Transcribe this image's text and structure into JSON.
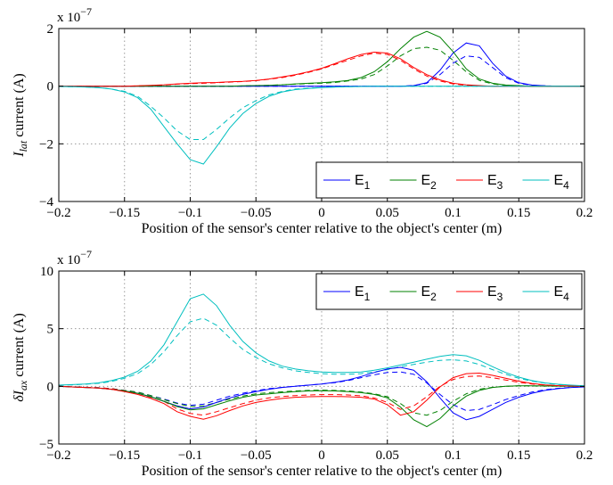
{
  "chart_data": [
    {
      "type": "line",
      "xlabel": "Position of the sensor's center relative to the object's center (m)",
      "ylabel_main": "I",
      "ylabel_sub": "lat",
      "ylabel_rest": " current (A)",
      "y_exponent": "x 10",
      "y_exponent_power": "−7",
      "xlim": [
        -0.2,
        0.2
      ],
      "ylim": [
        -4,
        2
      ],
      "xticks": [
        -0.2,
        -0.15,
        -0.1,
        -0.05,
        0,
        0.05,
        0.1,
        0.15,
        0.2
      ],
      "xtick_labels": [
        "−0.2",
        "−0.15",
        "−0.1",
        "−0.05",
        "0",
        "0.05",
        "0.1",
        "0.15",
        "0.2"
      ],
      "yticks": [
        -4,
        -2,
        0,
        2
      ],
      "ytick_labels": [
        "−4",
        "−2",
        "0",
        "2"
      ],
      "grid": true,
      "legend_position": "bottom-right",
      "legend_layout": "horizontal",
      "x": [
        -0.2,
        -0.19,
        -0.18,
        -0.17,
        -0.16,
        -0.15,
        -0.14,
        -0.13,
        -0.12,
        -0.11,
        -0.1,
        -0.09,
        -0.08,
        -0.07,
        -0.06,
        -0.05,
        -0.04,
        -0.03,
        -0.02,
        -0.01,
        0,
        0.01,
        0.02,
        0.03,
        0.04,
        0.05,
        0.06,
        0.07,
        0.08,
        0.09,
        0.1,
        0.11,
        0.12,
        0.13,
        0.14,
        0.15,
        0.16,
        0.17,
        0.18,
        0.19,
        0.2
      ],
      "series": [
        {
          "label": "E",
          "sub": "1",
          "color": "#0000ff",
          "values": [
            0,
            0,
            0,
            0,
            0,
            0,
            0,
            0,
            0,
            0,
            0,
            0,
            0,
            0,
            0,
            0,
            0,
            0,
            0,
            0,
            0,
            0,
            0,
            0,
            0,
            0,
            0,
            0.02,
            0.12,
            0.55,
            1.15,
            1.5,
            1.4,
            0.8,
            0.35,
            0.12,
            0.04,
            0.01,
            0,
            0,
            0
          ],
          "dashed": [
            0,
            0,
            0,
            0,
            0,
            0,
            0,
            0,
            0,
            0,
            0,
            0,
            0,
            0,
            0,
            0,
            0,
            0,
            0,
            0,
            0,
            0,
            0,
            0,
            0,
            0,
            0,
            0.02,
            0.1,
            0.4,
            0.8,
            1.05,
            1.0,
            0.65,
            0.3,
            0.1,
            0.03,
            0.01,
            0,
            0,
            0
          ]
        },
        {
          "label": "E",
          "sub": "2",
          "color": "#008000",
          "values": [
            0,
            0,
            0,
            0,
            0,
            0,
            0,
            0,
            0,
            0,
            0,
            0,
            0,
            0,
            0.01,
            0.02,
            0.03,
            0.05,
            0.08,
            0.1,
            0.12,
            0.15,
            0.2,
            0.3,
            0.5,
            0.85,
            1.3,
            1.7,
            1.9,
            1.7,
            1.2,
            0.6,
            0.25,
            0.1,
            0.04,
            0.02,
            0,
            0,
            0,
            0,
            0
          ],
          "dashed": [
            0,
            0,
            0,
            0,
            0,
            0,
            0,
            0,
            0,
            0,
            0,
            0,
            0,
            0,
            0.01,
            0.02,
            0.03,
            0.05,
            0.07,
            0.09,
            0.1,
            0.13,
            0.18,
            0.25,
            0.4,
            0.7,
            1.05,
            1.3,
            1.35,
            1.25,
            0.9,
            0.5,
            0.2,
            0.08,
            0.03,
            0.01,
            0,
            0,
            0,
            0,
            0
          ],
          "dashed_visible": true
        },
        {
          "label": "E",
          "sub": "3",
          "color": "#ff0000",
          "values": [
            0,
            0,
            0,
            0,
            0,
            0,
            0.01,
            0.03,
            0.05,
            0.08,
            0.1,
            0.12,
            0.13,
            0.15,
            0.17,
            0.2,
            0.25,
            0.32,
            0.4,
            0.5,
            0.62,
            0.78,
            0.95,
            1.1,
            1.18,
            1.15,
            0.95,
            0.65,
            0.4,
            0.22,
            0.1,
            0.05,
            0.02,
            0,
            0,
            0,
            0,
            0,
            0,
            0,
            0
          ],
          "dashed": [
            0,
            0,
            0,
            0,
            0,
            0,
            0.01,
            0.02,
            0.04,
            0.07,
            0.09,
            0.1,
            0.12,
            0.14,
            0.16,
            0.19,
            0.24,
            0.3,
            0.38,
            0.48,
            0.6,
            0.75,
            0.9,
            1.05,
            1.15,
            1.1,
            0.9,
            0.6,
            0.35,
            0.18,
            0.08,
            0.03,
            0.01,
            0,
            0,
            0,
            0,
            0,
            0,
            0,
            0
          ]
        },
        {
          "label": "E",
          "sub": "4",
          "color": "#00bfbf",
          "values": [
            -0.01,
            -0.02,
            -0.03,
            -0.05,
            -0.1,
            -0.2,
            -0.4,
            -0.8,
            -1.4,
            -2.0,
            -2.55,
            -2.7,
            -2.1,
            -1.45,
            -0.95,
            -0.6,
            -0.35,
            -0.2,
            -0.12,
            -0.08,
            -0.05,
            -0.03,
            -0.02,
            -0.01,
            0,
            0,
            0,
            0,
            0,
            0,
            0,
            0,
            0,
            0,
            0,
            0,
            0,
            0,
            0,
            0,
            0
          ],
          "dashed": [
            -0.01,
            -0.02,
            -0.03,
            -0.05,
            -0.1,
            -0.18,
            -0.35,
            -0.7,
            -1.1,
            -1.55,
            -1.85,
            -1.85,
            -1.5,
            -1.1,
            -0.75,
            -0.5,
            -0.3,
            -0.18,
            -0.1,
            -0.07,
            -0.04,
            -0.03,
            -0.02,
            -0.01,
            0,
            0,
            0,
            0,
            0,
            0,
            0,
            0,
            0,
            0,
            0,
            0,
            0,
            0,
            0,
            0,
            0
          ]
        }
      ]
    },
    {
      "type": "line",
      "xlabel": "Position of the sensor's center relative to the object's center (m)",
      "ylabel_main": "δI",
      "ylabel_sub": "ax",
      "ylabel_rest": " current (A)",
      "y_exponent": "x 10",
      "y_exponent_power": "−7",
      "xlim": [
        -0.2,
        0.2
      ],
      "ylim": [
        -5,
        10
      ],
      "xticks": [
        -0.2,
        -0.15,
        -0.1,
        -0.05,
        0,
        0.05,
        0.1,
        0.15,
        0.2
      ],
      "xtick_labels": [
        "−0.2",
        "−0.15",
        "−0.1",
        "−0.05",
        "0",
        "0.05",
        "0.1",
        "0.15",
        "0.2"
      ],
      "yticks": [
        -5,
        0,
        5,
        10
      ],
      "ytick_labels": [
        "−5",
        "0",
        "5",
        "10"
      ],
      "grid": true,
      "legend_position": "top-right",
      "legend_layout": "horizontal",
      "x": [
        -0.2,
        -0.19,
        -0.18,
        -0.17,
        -0.16,
        -0.15,
        -0.14,
        -0.13,
        -0.12,
        -0.11,
        -0.1,
        -0.09,
        -0.08,
        -0.07,
        -0.06,
        -0.05,
        -0.04,
        -0.03,
        -0.02,
        -0.01,
        0,
        0.01,
        0.02,
        0.03,
        0.04,
        0.05,
        0.06,
        0.07,
        0.08,
        0.09,
        0.1,
        0.11,
        0.12,
        0.13,
        0.14,
        0.15,
        0.16,
        0.17,
        0.18,
        0.19,
        0.2
      ],
      "series": [
        {
          "label": "E",
          "sub": "1",
          "color": "#0000ff",
          "values": [
            0,
            -0.05,
            -0.1,
            -0.15,
            -0.25,
            -0.4,
            -0.6,
            -0.9,
            -1.3,
            -1.7,
            -1.95,
            -1.8,
            -1.4,
            -1.0,
            -0.7,
            -0.45,
            -0.25,
            -0.1,
            0.0,
            0.1,
            0.2,
            0.35,
            0.55,
            0.85,
            1.2,
            1.5,
            1.65,
            1.4,
            0.4,
            -1.0,
            -2.3,
            -2.9,
            -2.6,
            -2.0,
            -1.4,
            -0.95,
            -0.6,
            -0.35,
            -0.2,
            -0.1,
            -0.05
          ],
          "dashed": [
            0,
            -0.05,
            -0.08,
            -0.12,
            -0.2,
            -0.35,
            -0.5,
            -0.8,
            -1.1,
            -1.45,
            -1.65,
            -1.55,
            -1.2,
            -0.85,
            -0.6,
            -0.38,
            -0.2,
            -0.08,
            0.02,
            0.1,
            0.2,
            0.32,
            0.5,
            0.75,
            1.0,
            1.2,
            1.25,
            1.05,
            0.3,
            -0.7,
            -1.6,
            -2.1,
            -2.0,
            -1.6,
            -1.15,
            -0.8,
            -0.5,
            -0.3,
            -0.17,
            -0.09,
            -0.04
          ]
        },
        {
          "label": "E",
          "sub": "2",
          "color": "#008000",
          "values": [
            0,
            -0.05,
            -0.1,
            -0.15,
            -0.25,
            -0.4,
            -0.6,
            -0.9,
            -1.3,
            -1.75,
            -2.05,
            -1.95,
            -1.6,
            -1.25,
            -0.95,
            -0.75,
            -0.65,
            -0.55,
            -0.45,
            -0.4,
            -0.38,
            -0.4,
            -0.45,
            -0.55,
            -0.7,
            -1.0,
            -1.8,
            -2.9,
            -3.5,
            -2.8,
            -1.7,
            -0.85,
            -0.35,
            -0.1,
            0.0,
            0.05,
            0.05,
            0.03,
            0.02,
            0.01,
            0
          ],
          "dashed": [
            0,
            -0.05,
            -0.08,
            -0.12,
            -0.2,
            -0.35,
            -0.5,
            -0.8,
            -1.15,
            -1.5,
            -1.75,
            -1.7,
            -1.4,
            -1.1,
            -0.85,
            -0.65,
            -0.55,
            -0.48,
            -0.4,
            -0.35,
            -0.33,
            -0.35,
            -0.4,
            -0.5,
            -0.65,
            -0.9,
            -1.5,
            -2.3,
            -2.5,
            -2.1,
            -1.3,
            -0.65,
            -0.25,
            -0.08,
            0.0,
            0.04,
            0.04,
            0.02,
            0.01,
            0,
            0
          ]
        },
        {
          "label": "E",
          "sub": "3",
          "color": "#ff0000",
          "values": [
            0,
            -0.05,
            -0.1,
            -0.15,
            -0.25,
            -0.45,
            -0.7,
            -1.05,
            -1.5,
            -2.2,
            -2.6,
            -2.85,
            -2.55,
            -2.1,
            -1.7,
            -1.4,
            -1.2,
            -1.05,
            -0.95,
            -0.9,
            -0.88,
            -0.88,
            -0.9,
            -0.95,
            -1.1,
            -1.6,
            -2.5,
            -2.2,
            -1.2,
            -0.05,
            0.75,
            1.1,
            1.15,
            0.95,
            0.7,
            0.45,
            0.25,
            0.12,
            0.06,
            0.03,
            0.01
          ],
          "dashed": [
            0,
            -0.05,
            -0.08,
            -0.12,
            -0.2,
            -0.38,
            -0.6,
            -0.95,
            -1.3,
            -1.95,
            -2.35,
            -2.5,
            -2.2,
            -1.85,
            -1.5,
            -1.2,
            -1.0,
            -0.88,
            -0.8,
            -0.75,
            -0.72,
            -0.72,
            -0.75,
            -0.82,
            -1.0,
            -1.4,
            -2.0,
            -1.7,
            -0.9,
            0.0,
            0.6,
            0.85,
            0.9,
            0.75,
            0.55,
            0.35,
            0.2,
            0.1,
            0.05,
            0.02,
            0.01
          ]
        },
        {
          "label": "E",
          "sub": "4",
          "color": "#00bfbf",
          "values": [
            0.1,
            0.15,
            0.2,
            0.3,
            0.5,
            0.8,
            1.3,
            2.2,
            3.6,
            5.6,
            7.6,
            8.0,
            7.0,
            5.3,
            3.9,
            2.9,
            2.2,
            1.75,
            1.5,
            1.35,
            1.25,
            1.2,
            1.2,
            1.25,
            1.4,
            1.6,
            1.85,
            2.1,
            2.35,
            2.6,
            2.75,
            2.65,
            2.25,
            1.7,
            1.2,
            0.8,
            0.5,
            0.3,
            0.18,
            0.1,
            0.05
          ],
          "dashed": [
            0.1,
            0.13,
            0.18,
            0.26,
            0.42,
            0.7,
            1.1,
            1.9,
            3.0,
            4.4,
            5.6,
            5.9,
            5.3,
            4.2,
            3.2,
            2.5,
            1.95,
            1.6,
            1.35,
            1.2,
            1.1,
            1.05,
            1.05,
            1.1,
            1.25,
            1.45,
            1.7,
            1.9,
            2.1,
            2.25,
            2.3,
            2.2,
            1.9,
            1.45,
            1.05,
            0.7,
            0.45,
            0.27,
            0.15,
            0.08,
            0.04
          ]
        }
      ]
    }
  ]
}
